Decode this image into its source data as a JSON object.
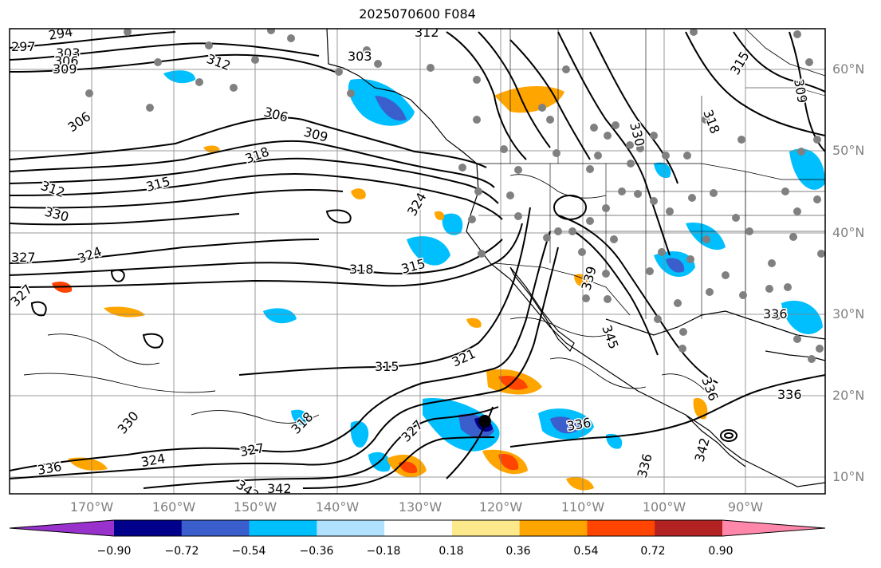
{
  "title": "2025070600 F084",
  "map": {
    "projection": "lat-lon",
    "lon_ticks": [
      "170°W",
      "160°W",
      "150°W",
      "140°W",
      "130°W",
      "120°W",
      "110°W",
      "100°W",
      "90°W"
    ],
    "lat_ticks": [
      "60°N",
      "50°N",
      "40°N",
      "30°N",
      "20°N",
      "10°N"
    ],
    "contour_labels": [
      {
        "text": "297"
      },
      {
        "text": "294"
      },
      {
        "text": "303"
      },
      {
        "text": "306"
      },
      {
        "text": "309"
      },
      {
        "text": "312"
      },
      {
        "text": "312"
      },
      {
        "text": "303"
      },
      {
        "text": "306"
      },
      {
        "text": "306"
      },
      {
        "text": "309"
      },
      {
        "text": "318"
      },
      {
        "text": "312"
      },
      {
        "text": "315"
      },
      {
        "text": "330"
      },
      {
        "text": "324"
      },
      {
        "text": "327"
      },
      {
        "text": "327"
      },
      {
        "text": "318"
      },
      {
        "text": "315"
      },
      {
        "text": "315"
      },
      {
        "text": "321"
      },
      {
        "text": "327"
      },
      {
        "text": "330"
      },
      {
        "text": "318"
      },
      {
        "text": "336"
      },
      {
        "text": "324"
      },
      {
        "text": "327"
      },
      {
        "text": "342"
      },
      {
        "text": "342"
      },
      {
        "text": "336"
      },
      {
        "text": "315"
      },
      {
        "text": "309"
      },
      {
        "text": "318"
      },
      {
        "text": "330"
      },
      {
        "text": "324"
      },
      {
        "text": "339"
      },
      {
        "text": "345"
      },
      {
        "text": "336"
      },
      {
        "text": "336"
      },
      {
        "text": "336"
      },
      {
        "text": "342"
      },
      {
        "text": "336"
      }
    ],
    "colors": {
      "land_border": "#000000",
      "contour": "#000000",
      "grid": "#808080",
      "station_dot": "#808080",
      "cyclone_center": "#000000"
    }
  },
  "colorbar": {
    "ticks": [
      "−0.90",
      "−0.72",
      "−0.54",
      "−0.36",
      "−0.18",
      "0.18",
      "0.36",
      "0.54",
      "0.72",
      "0.90"
    ],
    "colors": [
      "#9932cc",
      "#00008b",
      "#3a5fcd",
      "#00bfff",
      "#b0e2ff",
      "#ffffff",
      "#fce98c",
      "#ffa500",
      "#ff4500",
      "#b22222",
      "#ff88aa"
    ]
  }
}
